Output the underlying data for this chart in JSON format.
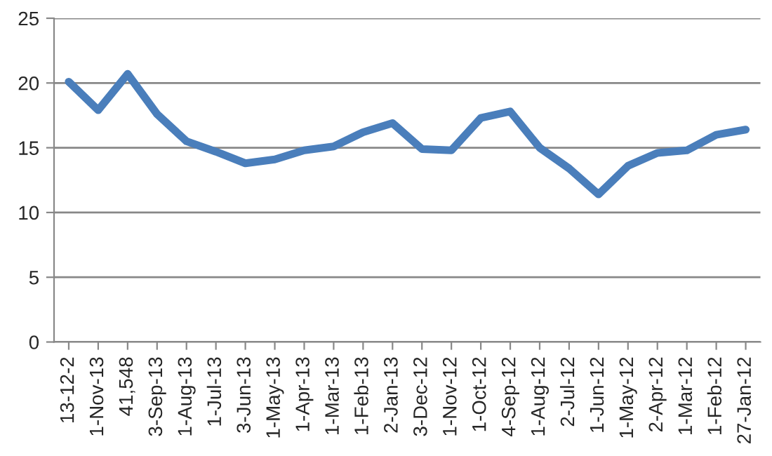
{
  "chart_data": {
    "type": "line",
    "categories": [
      "13-12-2",
      "1-Nov-13",
      "41,548",
      "3-Sep-13",
      "1-Aug-13",
      "1-Jul-13",
      "3-Jun-13",
      "1-May-13",
      "1-Apr-13",
      "1-Mar-13",
      "1-Feb-13",
      "2-Jan-13",
      "3-Dec-12",
      "1-Nov-12",
      "1-Oct-12",
      "4-Sep-12",
      "1-Aug-12",
      "2-Jul-12",
      "1-Jun-12",
      "1-May-12",
      "2-Apr-12",
      "1-Mar-12",
      "1-Feb-12",
      "27-Jan-12"
    ],
    "series": [
      {
        "color": "#4a7ebb",
        "values": [
          20.1,
          17.9,
          20.7,
          17.6,
          15.5,
          14.7,
          13.8,
          14.1,
          14.8,
          15.1,
          16.2,
          16.9,
          14.9,
          14.8,
          17.3,
          17.8,
          15.0,
          13.4,
          11.4,
          13.6,
          14.6,
          14.8,
          16.0,
          16.4
        ]
      }
    ],
    "ylim": [
      0,
      25
    ],
    "yticks": [
      0,
      5,
      10,
      15,
      20,
      25
    ],
    "grid": "y",
    "legend": false,
    "marker": "none",
    "line_style": "solid"
  }
}
